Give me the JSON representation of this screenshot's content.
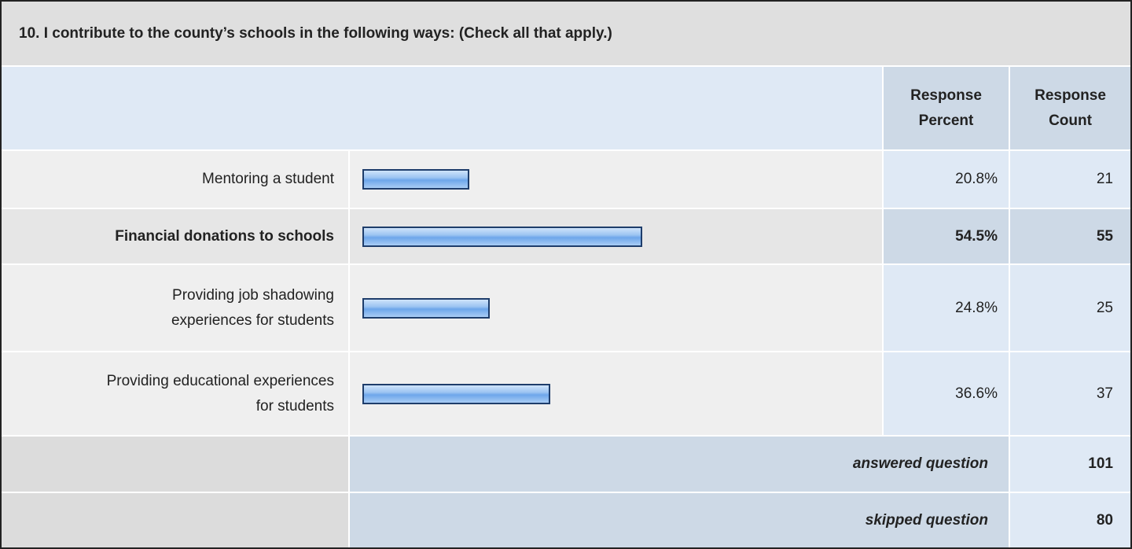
{
  "title": "10. I contribute to the county’s schools in the following ways: (Check all that apply.)",
  "headers": {
    "percent": "Response\nPercent",
    "count": "Response\nCount"
  },
  "chart_data": {
    "type": "bar",
    "categories": [
      "Mentoring a student",
      "Financial donations to schools",
      "Providing job shadowing\nexperiences for students",
      "Providing educational experiences\nfor students"
    ],
    "values": [
      20.8,
      54.5,
      24.8,
      36.6
    ],
    "value_labels": [
      "20.8%",
      "54.5%",
      "24.8%",
      "36.6%"
    ],
    "counts": [
      21,
      55,
      25,
      37
    ]
  },
  "summary": [
    {
      "label": "answered question",
      "value": 101
    },
    {
      "label": "skipped question",
      "value": 80
    }
  ]
}
